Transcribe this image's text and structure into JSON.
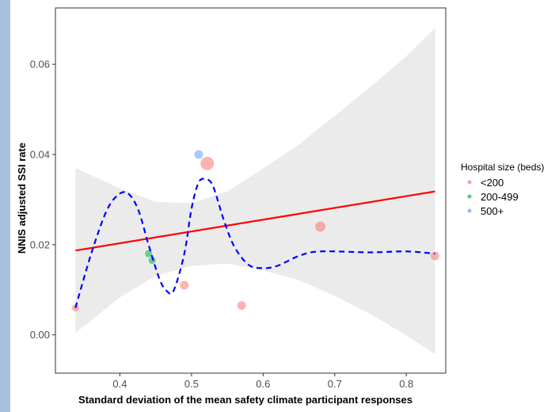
{
  "chart_data": {
    "type": "scatter",
    "title": "",
    "xlabel": "Standard deviation of the mean safety climate participant responses",
    "ylabel": "NNIS adjusted SSI rate",
    "xlim": [
      0.31,
      0.855
    ],
    "ylim": [
      -0.0085,
      0.0725
    ],
    "x_ticks": [
      0.4,
      0.5,
      0.6,
      0.7,
      0.8
    ],
    "x_tick_labels": [
      "0.4",
      "0.5",
      "0.6",
      "0.7",
      "0.8"
    ],
    "y_ticks": [
      0.0,
      0.02,
      0.04,
      0.06
    ],
    "y_tick_labels": [
      "0.00",
      "0.02",
      "0.04",
      "0.06"
    ],
    "grid": false,
    "legend_position": "right",
    "legend": {
      "title": "Hospital size (beds)",
      "entries": [
        {
          "label": "<200",
          "color": "#f8766d"
        },
        {
          "label": "200-499",
          "color": "#00ba38"
        },
        {
          "label": "500+",
          "color": "#619cff"
        }
      ]
    },
    "points": [
      {
        "x": 0.338,
        "y": 0.006,
        "group": "<200",
        "size": 2
      },
      {
        "x": 0.44,
        "y": 0.018,
        "group": "200-499",
        "size": 2
      },
      {
        "x": 0.445,
        "y": 0.0165,
        "group": "200-499",
        "size": 2
      },
      {
        "x": 0.49,
        "y": 0.011,
        "group": "<200",
        "size": 3
      },
      {
        "x": 0.51,
        "y": 0.04,
        "group": "500+",
        "size": 3
      },
      {
        "x": 0.522,
        "y": 0.038,
        "group": "<200",
        "size": 6
      },
      {
        "x": 0.57,
        "y": 0.0065,
        "group": "<200",
        "size": 3
      },
      {
        "x": 0.68,
        "y": 0.024,
        "group": "<200",
        "size": 4
      },
      {
        "x": 0.84,
        "y": 0.0175,
        "group": "<200",
        "size": 3
      }
    ],
    "linear_fit": {
      "color": "#ff0000",
      "x": [
        0.338,
        0.84
      ],
      "y": [
        0.0187,
        0.0318
      ]
    },
    "confidence_band": {
      "color": "#ebebeb",
      "x": [
        0.338,
        0.4,
        0.45,
        0.5,
        0.55,
        0.6,
        0.65,
        0.7,
        0.75,
        0.8,
        0.84
      ],
      "upper": [
        0.037,
        0.0325,
        0.0295,
        0.0292,
        0.0318,
        0.0369,
        0.0422,
        0.0486,
        0.055,
        0.0618,
        0.068
      ],
      "lower": [
        0.0004,
        0.0083,
        0.0131,
        0.0153,
        0.0158,
        0.0143,
        0.0121,
        0.0087,
        0.0046,
        -0.0001,
        -0.0043
      ]
    },
    "smooth_curve": {
      "color": "#0000ff",
      "style": "dashed",
      "x": [
        0.338,
        0.36,
        0.38,
        0.395,
        0.41,
        0.425,
        0.44,
        0.455,
        0.465,
        0.475,
        0.49,
        0.5,
        0.51,
        0.52,
        0.53,
        0.545,
        0.56,
        0.58,
        0.6,
        0.62,
        0.65,
        0.68,
        0.75,
        0.8,
        0.84
      ],
      "y": [
        0.006,
        0.018,
        0.027,
        0.0307,
        0.0315,
        0.028,
        0.02,
        0.0125,
        0.0098,
        0.0098,
        0.018,
        0.028,
        0.0338,
        0.0345,
        0.033,
        0.0255,
        0.0195,
        0.0155,
        0.0148,
        0.0153,
        0.0175,
        0.0185,
        0.0183,
        0.0185,
        0.018
      ]
    }
  }
}
